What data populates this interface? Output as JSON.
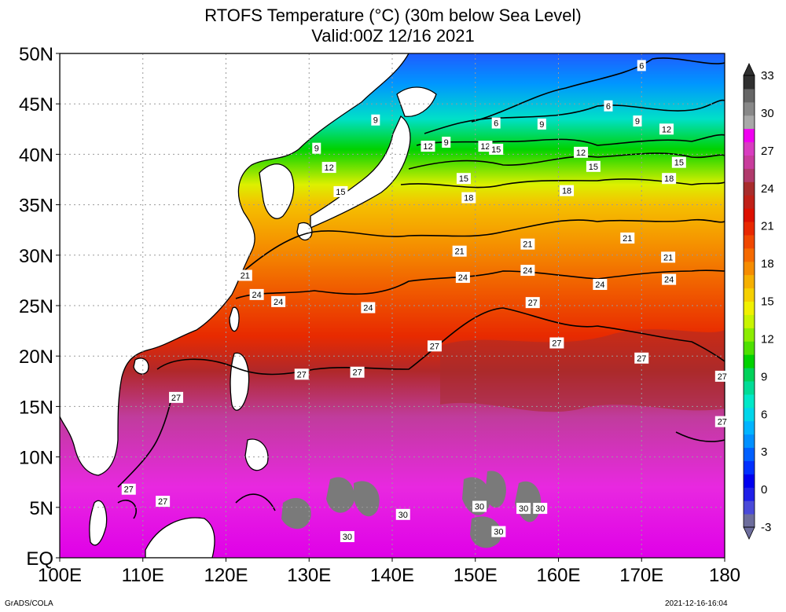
{
  "title": {
    "line1": "RTOFS Temperature (°C) (30m below Sea Level)",
    "line2": "Valid:00Z 12/16 2021"
  },
  "map": {
    "lon_range": [
      100,
      180
    ],
    "lat_range": [
      0,
      50
    ],
    "x_ticks": [
      "100E",
      "110E",
      "120E",
      "130E",
      "140E",
      "150E",
      "160E",
      "170E",
      "180"
    ],
    "y_ticks": [
      "EQ",
      "5N",
      "10N",
      "15N",
      "20N",
      "25N",
      "30N",
      "35N",
      "40N",
      "45N",
      "50N"
    ],
    "grid": "dotted",
    "land_color": "#ffffff",
    "contour_interval_c": 3
  },
  "colorbar": {
    "labels": [
      "-3",
      "0",
      "3",
      "6",
      "9",
      "12",
      "15",
      "18",
      "21",
      "24",
      "27",
      "30",
      "33"
    ],
    "colors": [
      "#6d6d9c",
      "#4a4ad8",
      "#1f1fe8",
      "#0000f0",
      "#0030ff",
      "#0060ff",
      "#0090ff",
      "#00b4ff",
      "#00d6ea",
      "#00e8c8",
      "#00dc96",
      "#00d25a",
      "#00d200",
      "#4ee000",
      "#8cec00",
      "#c8f400",
      "#f0f000",
      "#f5d000",
      "#f5b000",
      "#f58c00",
      "#f56a00",
      "#f04800",
      "#e82800",
      "#dc1000",
      "#c02018",
      "#a82c2c",
      "#b03a6c",
      "#c83c9c",
      "#d83cc0",
      "#f000f0",
      "#a8a8a8",
      "#888888",
      "#666666",
      "#303030"
    ]
  },
  "contour_labels": [
    {
      "text": "6",
      "lon": 170.0,
      "lat": 48.8
    },
    {
      "text": "6",
      "lon": 166.0,
      "lat": 44.8
    },
    {
      "text": "6",
      "lon": 152.5,
      "lat": 43.1
    },
    {
      "text": "9",
      "lon": 158.0,
      "lat": 43.0
    },
    {
      "text": "9",
      "lon": 169.5,
      "lat": 43.3
    },
    {
      "text": "12",
      "lon": 173.0,
      "lat": 42.5
    },
    {
      "text": "9",
      "lon": 146.5,
      "lat": 41.2
    },
    {
      "text": "12",
      "lon": 144.3,
      "lat": 40.8
    },
    {
      "text": "12",
      "lon": 151.2,
      "lat": 40.8
    },
    {
      "text": "15",
      "lon": 152.5,
      "lat": 40.5
    },
    {
      "text": "12",
      "lon": 162.7,
      "lat": 40.2
    },
    {
      "text": "15",
      "lon": 174.5,
      "lat": 39.2
    },
    {
      "text": "15",
      "lon": 164.2,
      "lat": 38.8
    },
    {
      "text": "18",
      "lon": 173.3,
      "lat": 37.6
    },
    {
      "text": "15",
      "lon": 148.6,
      "lat": 37.6
    },
    {
      "text": "18",
      "lon": 161.0,
      "lat": 36.4
    },
    {
      "text": "18",
      "lon": 149.2,
      "lat": 35.7
    },
    {
      "text": "9",
      "lon": 130.9,
      "lat": 40.6
    },
    {
      "text": "12",
      "lon": 132.4,
      "lat": 38.7
    },
    {
      "text": "15",
      "lon": 133.8,
      "lat": 36.3
    },
    {
      "text": "9",
      "lon": 138.0,
      "lat": 43.4
    },
    {
      "text": "21",
      "lon": 168.3,
      "lat": 31.7
    },
    {
      "text": "21",
      "lon": 156.3,
      "lat": 31.1
    },
    {
      "text": "21",
      "lon": 148.1,
      "lat": 30.4
    },
    {
      "text": "21",
      "lon": 173.2,
      "lat": 29.8
    },
    {
      "text": "21",
      "lon": 122.3,
      "lat": 28.0
    },
    {
      "text": "24",
      "lon": 156.3,
      "lat": 28.5
    },
    {
      "text": "24",
      "lon": 148.5,
      "lat": 27.8
    },
    {
      "text": "24",
      "lon": 173.3,
      "lat": 27.6
    },
    {
      "text": "24",
      "lon": 165.0,
      "lat": 27.1
    },
    {
      "text": "24",
      "lon": 123.7,
      "lat": 26.1
    },
    {
      "text": "24",
      "lon": 126.3,
      "lat": 25.4
    },
    {
      "text": "24",
      "lon": 137.1,
      "lat": 24.8
    },
    {
      "text": "27",
      "lon": 156.9,
      "lat": 25.3
    },
    {
      "text": "27",
      "lon": 145.1,
      "lat": 21.0
    },
    {
      "text": "27",
      "lon": 159.8,
      "lat": 21.3
    },
    {
      "text": "27",
      "lon": 170.0,
      "lat": 19.8
    },
    {
      "text": "27",
      "lon": 135.8,
      "lat": 18.4
    },
    {
      "text": "27",
      "lon": 129.1,
      "lat": 18.2
    },
    {
      "text": "27",
      "lon": 179.7,
      "lat": 18.0
    },
    {
      "text": "27",
      "lon": 114.0,
      "lat": 15.9
    },
    {
      "text": "27",
      "lon": 179.7,
      "lat": 13.5
    },
    {
      "text": "27",
      "lon": 108.3,
      "lat": 6.8
    },
    {
      "text": "27",
      "lon": 112.4,
      "lat": 5.6
    },
    {
      "text": "30",
      "lon": 150.5,
      "lat": 5.1
    },
    {
      "text": "30",
      "lon": 155.8,
      "lat": 4.9
    },
    {
      "text": "30",
      "lon": 157.8,
      "lat": 4.9
    },
    {
      "text": "30",
      "lon": 141.3,
      "lat": 4.3
    },
    {
      "text": "30",
      "lon": 152.8,
      "lat": 2.6
    },
    {
      "text": "30",
      "lon": 134.6,
      "lat": 2.1
    }
  ],
  "footer": {
    "left": "GrADS/COLA",
    "right": "2021-12-16-16:04"
  }
}
